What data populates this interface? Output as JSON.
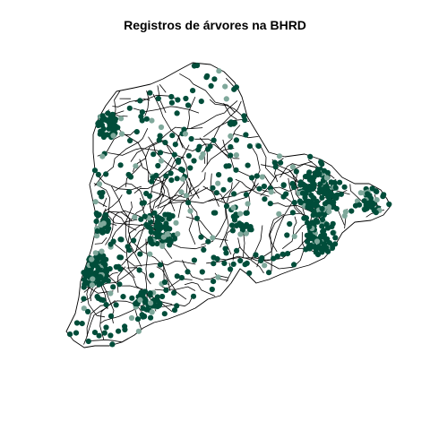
{
  "title": "Registros de árvores na BHRD",
  "colors": {
    "background": "#ffffff",
    "title": "#000000",
    "boundaries": "#000000",
    "points": "#004d3a",
    "points_light": "#7fa89b"
  },
  "point_symbol": "filled-circle",
  "legend": "none"
}
